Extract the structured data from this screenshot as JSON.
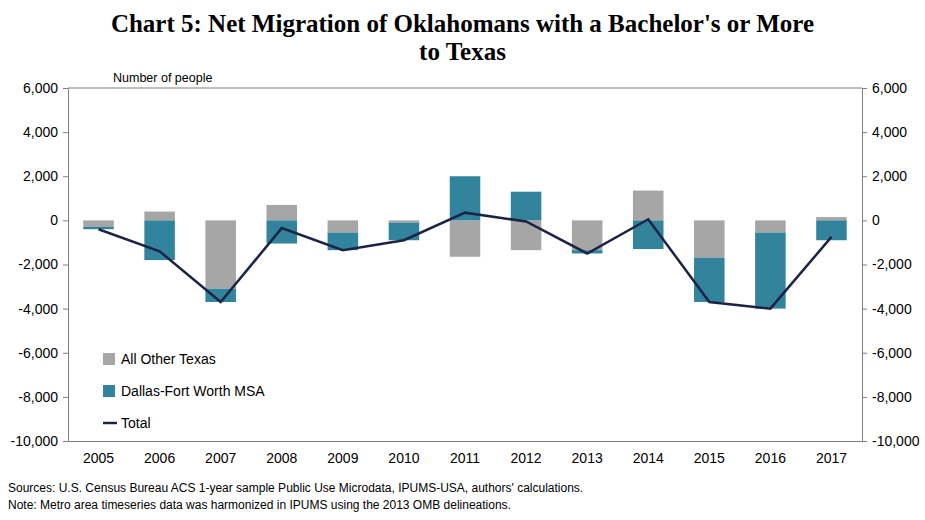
{
  "chart_data": {
    "type": "bar",
    "title": "Chart 5: Net Migration of Oklahomans with a Bachelor's or More to Texas",
    "y_label": "Number of people",
    "categories": [
      "2005",
      "2006",
      "2007",
      "2008",
      "2009",
      "2010",
      "2011",
      "2012",
      "2013",
      "2014",
      "2015",
      "2016",
      "2017"
    ],
    "series": [
      {
        "name": "All Other Texas",
        "type": "bar",
        "color": "#a6a6a6",
        "values": [
          -300,
          400,
          -3100,
          700,
          -550,
          -100,
          -1650,
          -1350,
          -1350,
          1350,
          -1700,
          -550,
          150
        ]
      },
      {
        "name": "Dallas-Fort Worth MSA",
        "type": "bar",
        "color": "#31849b",
        "values": [
          -100,
          -1800,
          -600,
          -1050,
          -800,
          -800,
          2000,
          1300,
          -150,
          -1300,
          -2000,
          -3450,
          -900
        ]
      },
      {
        "name": "Total",
        "type": "line",
        "color": "#1c2347",
        "values": [
          -400,
          -1400,
          -3700,
          -350,
          -1350,
          -900,
          350,
          -50,
          -1500,
          50,
          -3700,
          -4000,
          -750
        ]
      }
    ],
    "stacked": true,
    "grid": false,
    "legend": "lower left",
    "ylim": [
      -10000,
      6000
    ],
    "yticks": [
      {
        "value": -10000,
        "label": "-10,000"
      },
      {
        "value": -8000,
        "label": "-8,000"
      },
      {
        "value": -6000,
        "label": "-6,000"
      },
      {
        "value": -4000,
        "label": "-4,000"
      },
      {
        "value": -2000,
        "label": "-2,000"
      },
      0,
      {
        "value": 2000,
        "label": "2,000"
      },
      {
        "value": 4000,
        "label": "4,000"
      },
      {
        "value": 6000,
        "label": "6,000"
      }
    ],
    "y2lim": [
      -10000,
      6000
    ],
    "y2ticks": [
      {
        "value": -10000,
        "label": "-10,000"
      },
      {
        "value": -8000,
        "label": "-8,000"
      },
      {
        "value": -6000,
        "label": "-6,000"
      },
      {
        "value": -4000,
        "label": "-4,000"
      },
      {
        "value": -2000,
        "label": "-2,000"
      },
      0,
      {
        "value": 2000,
        "label": "2,000"
      },
      {
        "value": 4000,
        "label": "4,000"
      },
      {
        "value": 6000,
        "label": "6,000"
      }
    ],
    "annotations": [
      "Sources: U.S. Census Bureau ACS 1-year sample Public Use Microdata, IPUMS-USA, authors' calculations.",
      "Note: Metro area timeseries data was harmonized in IPUMS using the 2013 OMB delineations."
    ]
  }
}
